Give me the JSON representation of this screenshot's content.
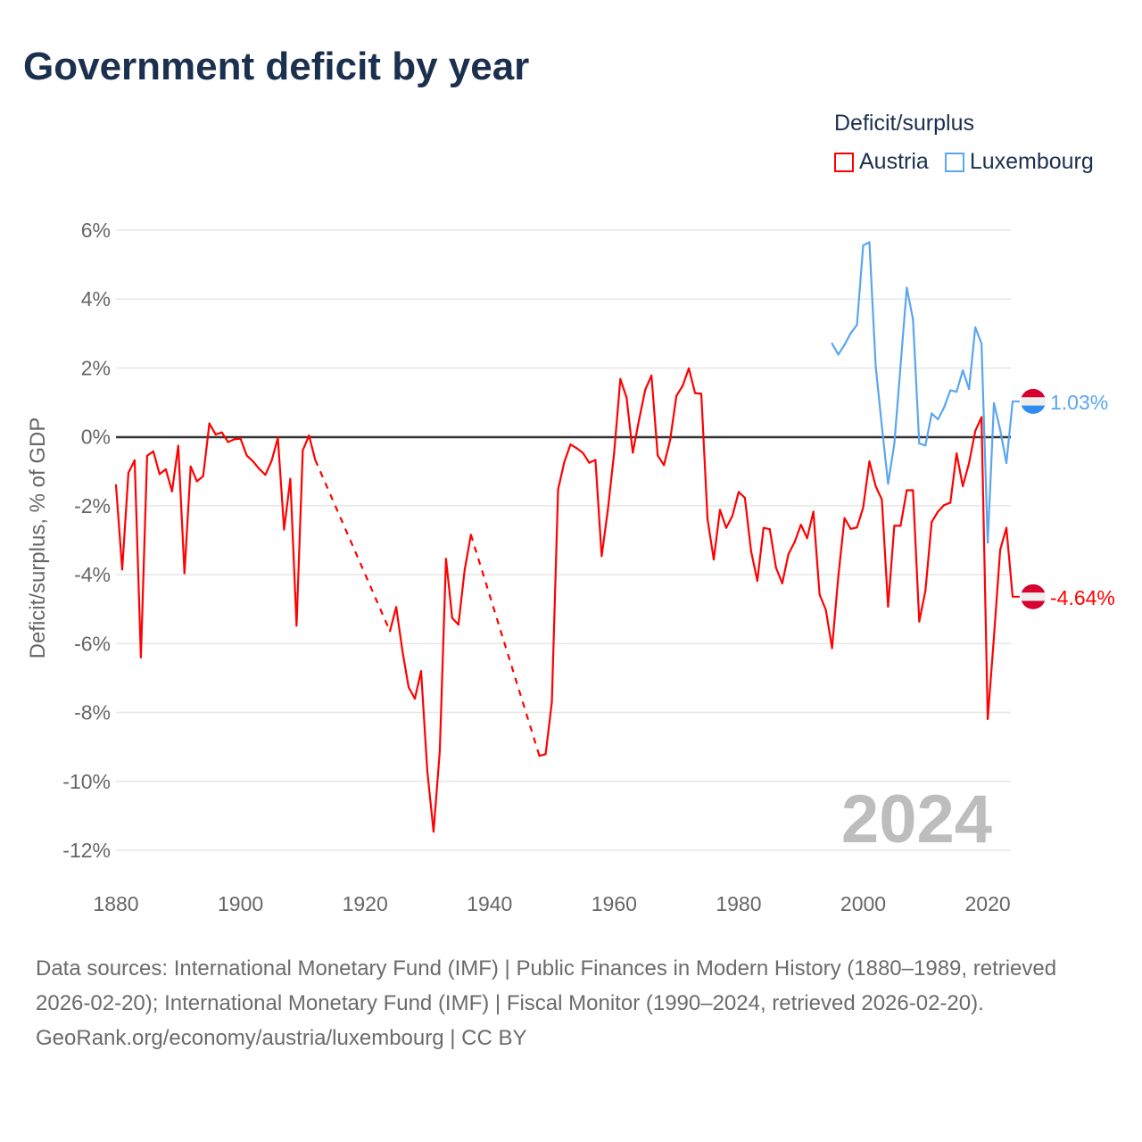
{
  "chart_data": {
    "type": "line",
    "title": "Government deficit by year",
    "ylabel": "Deficit/surplus, % of GDP",
    "xlabel": "",
    "xlim": [
      1880,
      2024
    ],
    "ylim": [
      -12,
      6
    ],
    "x_ticks": [
      1880,
      1900,
      1920,
      1940,
      1960,
      1980,
      2000,
      2020
    ],
    "x_tick_labels": [
      "1880",
      "1900",
      "1920",
      "1940",
      "1960",
      "1980",
      "2000",
      "2020"
    ],
    "y_ticks": [
      6,
      4,
      2,
      0,
      -2,
      -4,
      -6,
      -8,
      -10,
      -12
    ],
    "y_tick_labels": [
      "6%",
      "4%",
      "2%",
      "0%",
      "-2%",
      "-4%",
      "-6%",
      "-8%",
      "-10%",
      "-12%"
    ],
    "grid": true,
    "legend_title": "Deficit/surplus",
    "legend_position": "top-right",
    "year_watermark": "2024",
    "series": [
      {
        "name": "Austria",
        "color": "#ff0000",
        "end_label": "-4.64%",
        "flag": [
          "#d8002f",
          "#eeeeee",
          "#d8002f"
        ],
        "x": [
          1880,
          1881,
          1882,
          1883,
          1884,
          1885,
          1886,
          1887,
          1888,
          1889,
          1890,
          1891,
          1892,
          1893,
          1894,
          1895,
          1896,
          1897,
          1898,
          1899,
          1900,
          1901,
          1902,
          1903,
          1904,
          1905,
          1906,
          1907,
          1908,
          1909,
          1910,
          1911,
          1912,
          1924,
          1925,
          1926,
          1927,
          1928,
          1929,
          1930,
          1931,
          1932,
          1933,
          1934,
          1935,
          1936,
          1937,
          1948,
          1949,
          1950,
          1951,
          1952,
          1953,
          1954,
          1955,
          1956,
          1957,
          1958,
          1959,
          1960,
          1961,
          1962,
          1963,
          1964,
          1965,
          1966,
          1967,
          1968,
          1969,
          1970,
          1971,
          1972,
          1973,
          1974,
          1975,
          1976,
          1977,
          1978,
          1979,
          1980,
          1981,
          1982,
          1983,
          1984,
          1985,
          1986,
          1987,
          1988,
          1989,
          1990,
          1991,
          1992,
          1993,
          1994,
          1995,
          1996,
          1997,
          1998,
          1999,
          2000,
          2001,
          2002,
          2003,
          2004,
          2005,
          2006,
          2007,
          2008,
          2009,
          2010,
          2011,
          2012,
          2013,
          2014,
          2015,
          2016,
          2017,
          2018,
          2019,
          2020,
          2021,
          2022,
          2023,
          2024
        ],
        "values": [
          -1.4,
          -3.85,
          -1.04,
          -0.68,
          -6.4,
          -0.55,
          -0.42,
          -1.08,
          -0.94,
          -1.58,
          -0.26,
          -3.96,
          -0.86,
          -1.29,
          -1.14,
          0.39,
          0.07,
          0.13,
          -0.15,
          -0.07,
          -0.05,
          -0.54,
          -0.71,
          -0.93,
          -1.1,
          -0.69,
          -0.03,
          -2.69,
          -1.22,
          -5.48,
          -0.39,
          0.04,
          -0.67,
          -5.64,
          -4.94,
          -6.21,
          -7.27,
          -7.6,
          -6.8,
          -9.7,
          -11.46,
          -9.13,
          -3.54,
          -5.26,
          -5.45,
          -3.86,
          -2.84,
          -9.26,
          -9.21,
          -7.7,
          -1.53,
          -0.73,
          -0.22,
          -0.33,
          -0.47,
          -0.75,
          -0.67,
          -3.46,
          -2.11,
          -0.47,
          1.68,
          1.14,
          -0.46,
          0.49,
          1.37,
          1.78,
          -0.54,
          -0.82,
          -0.09,
          1.19,
          1.48,
          1.99,
          1.27,
          1.25,
          -2.38,
          -3.56,
          -2.12,
          -2.64,
          -2.29,
          -1.6,
          -1.77,
          -3.32,
          -4.18,
          -2.64,
          -2.68,
          -3.8,
          -4.25,
          -3.4,
          -3.05,
          -2.55,
          -2.94,
          -2.17,
          -4.58,
          -5.02,
          -6.13,
          -4.06,
          -2.36,
          -2.67,
          -2.63,
          -2.05,
          -0.71,
          -1.43,
          -1.82,
          -4.93,
          -2.58,
          -2.58,
          -1.55,
          -1.55,
          -5.36,
          -4.46,
          -2.47,
          -2.17,
          -1.98,
          -1.91,
          -0.48,
          -1.43,
          -0.76,
          0.17,
          0.57,
          -8.19,
          -5.81,
          -3.28,
          -2.64,
          -4.64
        ]
      },
      {
        "name": "Luxembourg",
        "color": "#5aa5f0",
        "end_label": "1.03%",
        "flag": [
          "#d8002f",
          "#eeeeee",
          "#2f8cf0"
        ],
        "x": [
          1995,
          1996,
          1997,
          1998,
          1999,
          2000,
          2001,
          2002,
          2003,
          2004,
          2005,
          2006,
          2007,
          2008,
          2009,
          2010,
          2011,
          2012,
          2013,
          2014,
          2015,
          2016,
          2017,
          2018,
          2019,
          2020,
          2021,
          2022,
          2023,
          2024
        ],
        "values": [
          2.71,
          2.39,
          2.67,
          3.01,
          3.25,
          5.56,
          5.65,
          2.06,
          0.31,
          -1.36,
          -0.2,
          2.06,
          4.33,
          3.41,
          -0.19,
          -0.25,
          0.68,
          0.51,
          0.86,
          1.35,
          1.31,
          1.93,
          1.39,
          3.18,
          2.71,
          -3.07,
          0.98,
          0.21,
          -0.76,
          1.03
        ]
      }
    ]
  },
  "footer": {
    "sources": "Data sources: International Monetary Fund (IMF) | Public Finances in Modern History (1880–1989, retrieved 2026-02-20); International Monetary Fund (IMF) | Fiscal Monitor (1990–2024, retrieved 2026-02-20).",
    "credit": "GeoRank.org/economy/austria/luxembourg | CC BY"
  }
}
